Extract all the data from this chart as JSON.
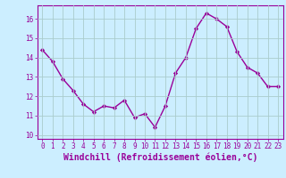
{
  "x": [
    0,
    1,
    2,
    3,
    4,
    5,
    6,
    7,
    8,
    9,
    10,
    11,
    12,
    13,
    14,
    15,
    16,
    17,
    18,
    19,
    20,
    21,
    22,
    23
  ],
  "y": [
    14.4,
    13.8,
    12.9,
    12.3,
    11.6,
    11.2,
    11.5,
    11.4,
    11.8,
    10.9,
    11.1,
    10.4,
    11.5,
    13.2,
    14.0,
    15.5,
    16.3,
    16.0,
    15.6,
    14.3,
    13.5,
    13.2,
    12.5,
    12.5
  ],
  "line_color": "#990099",
  "marker": "D",
  "marker_size": 2.2,
  "bg_color": "#cceeff",
  "grid_color": "#aacccc",
  "xlabel": "Windchill (Refroidissement éolien,°C)",
  "ylim": [
    9.8,
    16.7
  ],
  "xlim": [
    -0.5,
    23.5
  ],
  "yticks": [
    10,
    11,
    12,
    13,
    14,
    15,
    16
  ],
  "xticks": [
    0,
    1,
    2,
    3,
    4,
    5,
    6,
    7,
    8,
    9,
    10,
    11,
    12,
    13,
    14,
    15,
    16,
    17,
    18,
    19,
    20,
    21,
    22,
    23
  ],
  "tick_label_fontsize": 5.5,
  "xlabel_fontsize": 7.0,
  "line_width": 1.0
}
